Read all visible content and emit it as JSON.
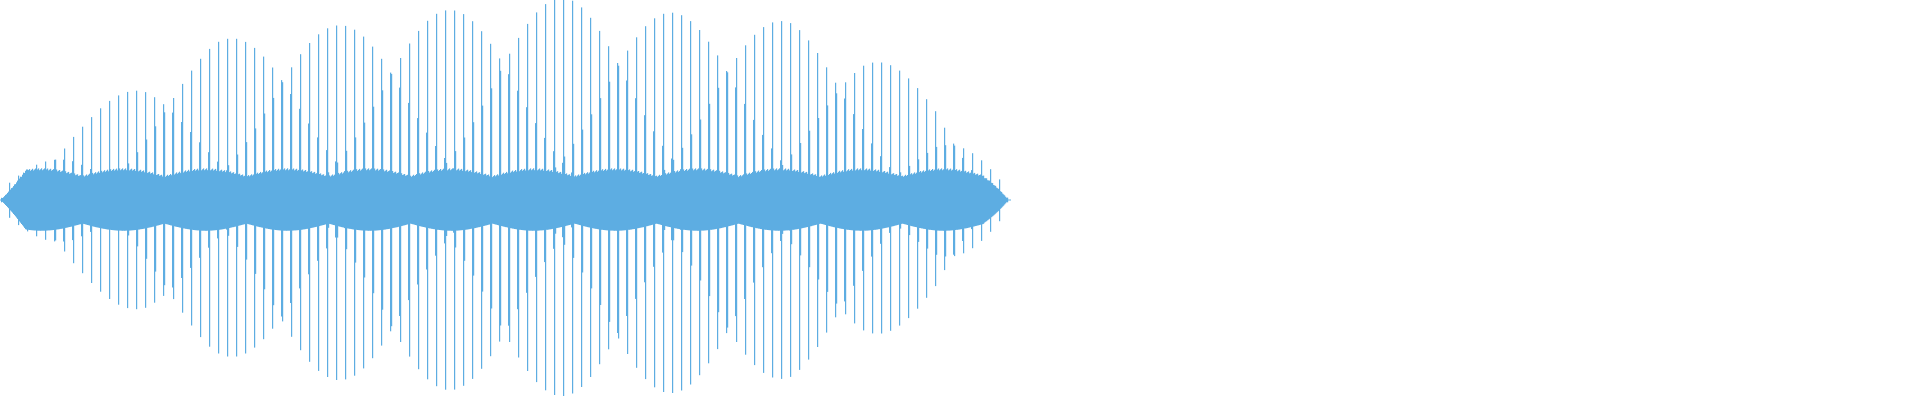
{
  "chart_data": {
    "type": "waveform",
    "color": "#5dade2",
    "background": "#ffffff",
    "axes_visible": false,
    "grid": false,
    "legend": "none",
    "duration_fraction_of_view": 0.525,
    "cycles": 111,
    "envelope_peak": [
      0.05,
      0.38,
      0.62,
      0.78,
      0.88,
      0.93,
      0.96,
      0.98,
      1.0,
      0.99,
      0.96,
      0.9,
      0.75,
      0.52,
      0.05
    ],
    "envelope_floor": 0.12,
    "ylim": [
      -1,
      1
    ]
  }
}
